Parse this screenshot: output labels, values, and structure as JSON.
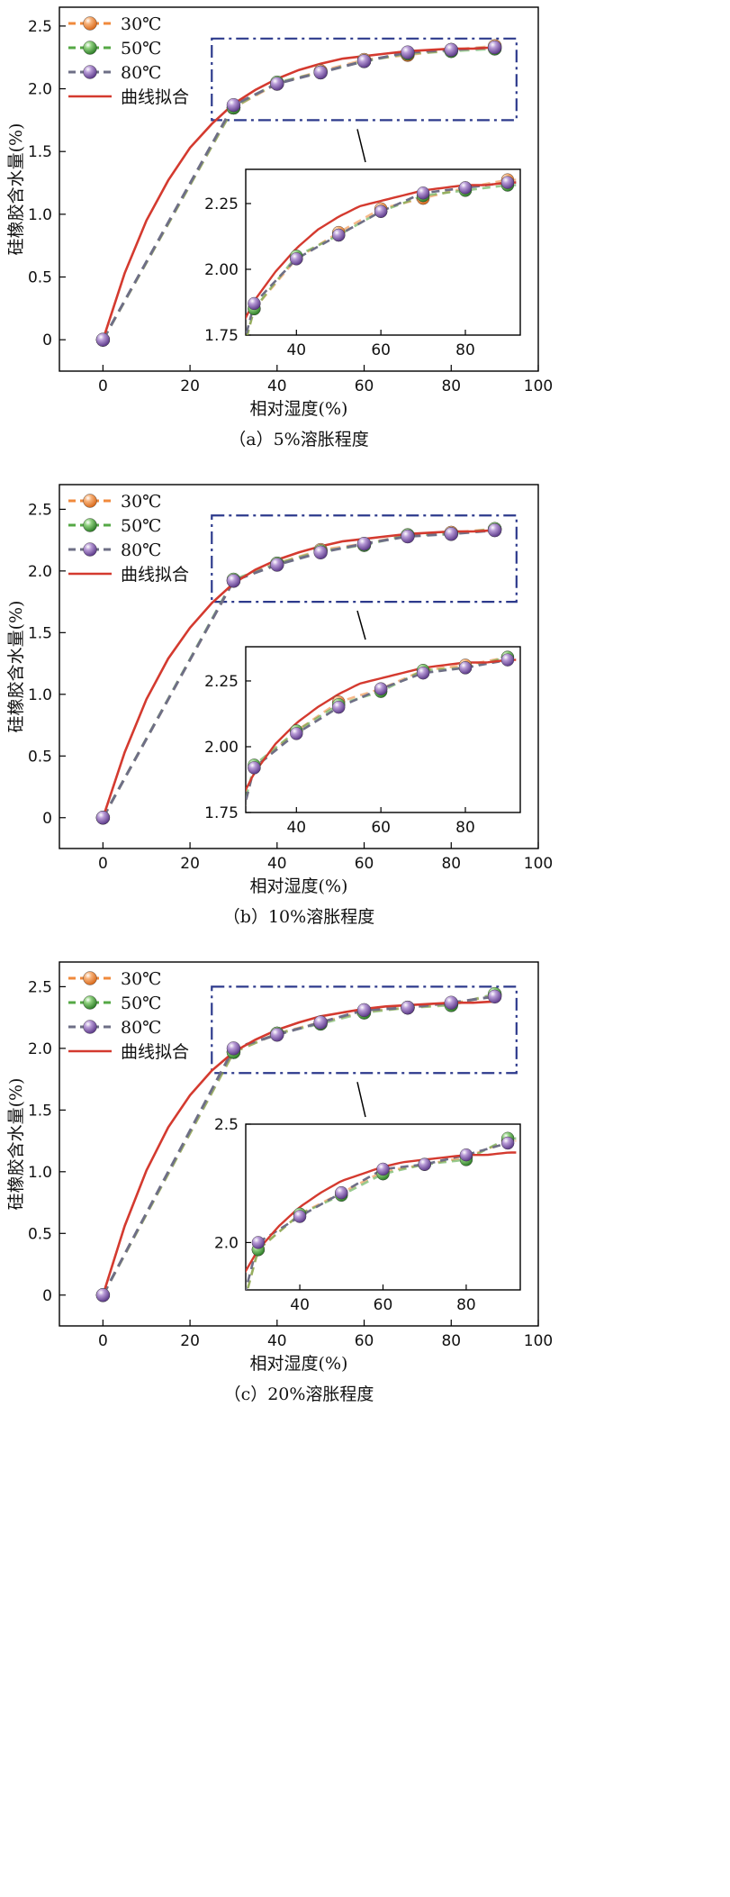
{
  "figure": {
    "xlabel": "相对湿度(%)",
    "ylabel": "硅橡胶含水量(%)",
    "legend": [
      "30℃",
      "50℃",
      "80℃",
      "曲线拟合"
    ]
  },
  "colors": {
    "c30": "#f08a3c",
    "c50": "#55a845",
    "c80": "#8a63b4",
    "fit": "#d43a2f",
    "dash": "#6e6f86",
    "box": "#2d3a8c"
  },
  "chart_data": [
    {
      "type": "line",
      "caption": "（a）5%溶胀程度",
      "xlim": [
        -10,
        100
      ],
      "ylim": [
        -0.25,
        2.65
      ],
      "xticks": [
        0,
        20,
        40,
        60,
        80,
        100
      ],
      "yticks": [
        0,
        0.5,
        1.0,
        1.5,
        2.0,
        2.5
      ],
      "ytick_labels": [
        "0",
        "0.5",
        "1.0",
        "1.5",
        "2.0",
        "2.5"
      ],
      "zoom_box": {
        "x": [
          25,
          95
        ],
        "y": [
          1.75,
          2.4
        ]
      },
      "series": [
        {
          "name": "30℃",
          "x": [
            0,
            30,
            40,
            50,
            60,
            70,
            80,
            90
          ],
          "y": [
            0,
            1.85,
            2.04,
            2.14,
            2.23,
            2.27,
            2.31,
            2.34
          ]
        },
        {
          "name": "50℃",
          "x": [
            0,
            30,
            40,
            50,
            60,
            70,
            80,
            90
          ],
          "y": [
            0,
            1.85,
            2.05,
            2.13,
            2.22,
            2.28,
            2.3,
            2.32
          ]
        },
        {
          "name": "80℃",
          "x": [
            0,
            30,
            40,
            50,
            60,
            70,
            80,
            90
          ],
          "y": [
            0,
            1.87,
            2.04,
            2.13,
            2.22,
            2.29,
            2.31,
            2.33
          ]
        },
        {
          "name": "曲线拟合",
          "x": [
            0,
            5,
            10,
            15,
            20,
            25,
            30,
            35,
            40,
            45,
            50,
            55,
            60,
            65,
            70,
            75,
            80,
            85,
            90
          ],
          "y": [
            0,
            0.53,
            0.95,
            1.27,
            1.53,
            1.72,
            1.88,
            1.99,
            2.08,
            2.15,
            2.2,
            2.24,
            2.26,
            2.28,
            2.3,
            2.31,
            2.32,
            2.32,
            2.33
          ]
        }
      ],
      "inset": {
        "xlim": [
          28,
          93
        ],
        "ylim": [
          1.75,
          2.38
        ],
        "xticks": [
          40,
          60,
          80
        ],
        "yticks": [
          1.75,
          2.0,
          2.25
        ],
        "ytick_labels": [
          "1.75",
          "2.00",
          "2.25"
        ]
      }
    },
    {
      "type": "line",
      "caption": "（b）10%溶胀程度",
      "xlim": [
        -10,
        100
      ],
      "ylim": [
        -0.25,
        2.7
      ],
      "xticks": [
        0,
        20,
        40,
        60,
        80,
        100
      ],
      "yticks": [
        0,
        0.5,
        1.0,
        1.5,
        2.0,
        2.5
      ],
      "ytick_labels": [
        "0",
        "0.5",
        "1.0",
        "1.5",
        "2.0",
        "2.5"
      ],
      "zoom_box": {
        "x": [
          25,
          95
        ],
        "y": [
          1.75,
          2.45
        ]
      },
      "series": [
        {
          "name": "30℃",
          "x": [
            0,
            30,
            40,
            50,
            60,
            70,
            80,
            90
          ],
          "y": [
            0,
            1.92,
            2.06,
            2.17,
            2.22,
            2.29,
            2.31,
            2.34
          ]
        },
        {
          "name": "50℃",
          "x": [
            0,
            30,
            40,
            50,
            60,
            70,
            80,
            90
          ],
          "y": [
            0,
            1.93,
            2.06,
            2.16,
            2.21,
            2.29,
            2.3,
            2.34
          ]
        },
        {
          "name": "80℃",
          "x": [
            0,
            30,
            40,
            50,
            60,
            70,
            80,
            90
          ],
          "y": [
            0,
            1.92,
            2.05,
            2.15,
            2.22,
            2.28,
            2.3,
            2.33
          ]
        },
        {
          "name": "曲线拟合",
          "x": [
            0,
            5,
            10,
            15,
            20,
            25,
            30,
            35,
            40,
            45,
            50,
            55,
            60,
            65,
            70,
            75,
            80,
            85,
            90
          ],
          "y": [
            0,
            0.53,
            0.96,
            1.29,
            1.54,
            1.74,
            1.9,
            2.01,
            2.09,
            2.15,
            2.2,
            2.24,
            2.26,
            2.28,
            2.3,
            2.31,
            2.32,
            2.32,
            2.33
          ]
        }
      ],
      "inset": {
        "xlim": [
          28,
          93
        ],
        "ylim": [
          1.75,
          2.38
        ],
        "xticks": [
          40,
          60,
          80
        ],
        "yticks": [
          1.75,
          2.0,
          2.25
        ],
        "ytick_labels": [
          "1.75",
          "2.00",
          "2.25"
        ]
      }
    },
    {
      "type": "line",
      "caption": "（c）20%溶胀程度",
      "xlim": [
        -10,
        100
      ],
      "ylim": [
        -0.25,
        2.7
      ],
      "xticks": [
        0,
        20,
        40,
        60,
        80,
        100
      ],
      "yticks": [
        0,
        0.5,
        1.0,
        1.5,
        2.0,
        2.5
      ],
      "ytick_labels": [
        "0",
        "0.5",
        "1.0",
        "1.5",
        "2.0",
        "2.5"
      ],
      "zoom_box": {
        "x": [
          25,
          95
        ],
        "y": [
          1.8,
          2.5
        ]
      },
      "series": [
        {
          "name": "30℃",
          "x": [
            0,
            30,
            40,
            50,
            60,
            70,
            80,
            90
          ],
          "y": [
            0,
            1.97,
            2.12,
            2.21,
            2.3,
            2.33,
            2.36,
            2.43
          ]
        },
        {
          "name": "50℃",
          "x": [
            0,
            30,
            40,
            50,
            60,
            70,
            80,
            90
          ],
          "y": [
            0,
            1.97,
            2.12,
            2.2,
            2.29,
            2.33,
            2.35,
            2.44
          ]
        },
        {
          "name": "80℃",
          "x": [
            0,
            30,
            40,
            50,
            60,
            70,
            80,
            90
          ],
          "y": [
            0,
            2.0,
            2.11,
            2.21,
            2.31,
            2.33,
            2.37,
            2.42
          ]
        },
        {
          "name": "曲线拟合",
          "x": [
            0,
            5,
            10,
            15,
            20,
            25,
            30,
            35,
            40,
            45,
            50,
            55,
            60,
            65,
            70,
            75,
            80,
            85,
            90
          ],
          "y": [
            0,
            0.56,
            1.01,
            1.36,
            1.62,
            1.82,
            1.97,
            2.07,
            2.15,
            2.21,
            2.26,
            2.29,
            2.32,
            2.34,
            2.35,
            2.36,
            2.37,
            2.37,
            2.38
          ]
        }
      ],
      "inset": {
        "xlim": [
          27,
          93
        ],
        "ylim": [
          1.8,
          2.5
        ],
        "xticks": [
          40,
          60,
          80
        ],
        "yticks": [
          2.0,
          2.5
        ],
        "ytick_labels": [
          "2.0",
          "2.5"
        ]
      }
    }
  ]
}
